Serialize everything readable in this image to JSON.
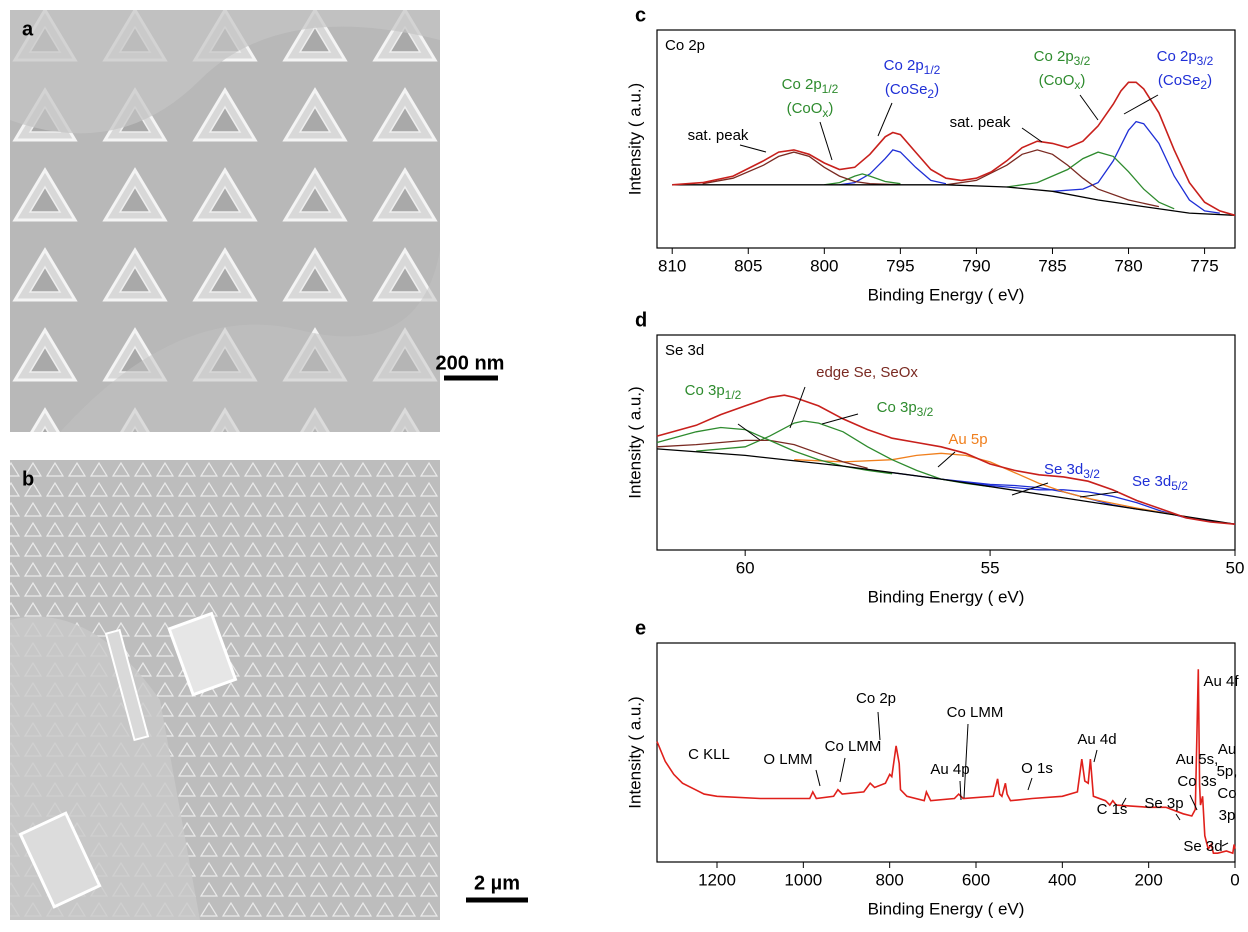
{
  "images": [
    {
      "label": "a",
      "scale_bar": "200 nm"
    },
    {
      "label": "b",
      "scale_bar": "2 µm"
    }
  ],
  "chart_data": [
    {
      "type": "line",
      "label": "c",
      "title": "Co 2p",
      "x_label": "Binding Energy (  eV)",
      "y_label": "Intensity (  a.u.)",
      "xlim": [
        811,
        773
      ],
      "xticks": [
        810,
        805,
        800,
        795,
        790,
        785,
        780,
        775
      ],
      "ylim": [
        0,
        100
      ],
      "series": [
        {
          "color": "#c8201c",
          "x": [
            810,
            808,
            806,
            804,
            803,
            802,
            801,
            800,
            799,
            798,
            797,
            796,
            795.5,
            795,
            794,
            793,
            792,
            791,
            790,
            789,
            788,
            787,
            786,
            785,
            784,
            783,
            782,
            781,
            780.5,
            780,
            779.5,
            779,
            778,
            777,
            776,
            775,
            774,
            773
          ],
          "values": [
            29,
            30,
            33,
            40,
            44,
            45,
            43,
            39,
            36,
            37,
            43,
            51,
            53,
            52,
            44,
            36,
            32,
            31,
            32,
            35,
            40,
            46,
            49,
            48,
            46,
            49,
            56,
            66,
            72,
            76,
            76,
            73,
            62,
            45,
            30,
            21,
            17,
            15
          ]
        },
        {
          "color": "#000000",
          "x": [
            810,
            800,
            792,
            788,
            785,
            782,
            779,
            776,
            773
          ],
          "values": [
            29,
            29,
            29,
            28,
            26,
            22,
            19,
            16,
            15
          ]
        },
        {
          "color": "#7a2a22",
          "x": [
            808,
            806,
            804,
            803,
            802,
            801,
            800,
            799,
            798,
            797,
            795
          ],
          "values": [
            29.5,
            32,
            38,
            42,
            44,
            42,
            37,
            33,
            30.5,
            29.5,
            29
          ]
        },
        {
          "color": "#2e8b2e",
          "x": [
            800,
            799,
            798,
            797.5,
            797,
            796,
            795
          ],
          "values": [
            29,
            30,
            33,
            34,
            33,
            30.5,
            29.5
          ]
        },
        {
          "color": "#1f2fd6",
          "x": [
            799,
            798,
            797,
            796,
            795.5,
            795,
            794,
            793,
            792
          ],
          "values": [
            29,
            30,
            34,
            41,
            45,
            44,
            37,
            31,
            29.5
          ]
        },
        {
          "color": "#7a2a22",
          "x": [
            792,
            790,
            788,
            787,
            786,
            785,
            784,
            783,
            782,
            780,
            778
          ],
          "values": [
            29,
            31,
            38,
            43,
            45,
            43,
            38,
            32,
            27,
            22,
            19
          ]
        },
        {
          "color": "#2e8b2e",
          "x": [
            788,
            786,
            784,
            783,
            782,
            781,
            780,
            779,
            778,
            777
          ],
          "values": [
            28,
            30,
            36,
            41,
            44,
            42,
            35,
            27,
            21,
            18
          ]
        },
        {
          "color": "#1f2fd6",
          "x": [
            785,
            783,
            782,
            781,
            780,
            779.5,
            779,
            778,
            777,
            776,
            775,
            774
          ],
          "values": [
            26,
            27,
            30,
            40,
            54,
            58,
            57,
            48,
            33,
            22,
            17,
            16
          ]
        }
      ],
      "annotations": [
        {
          "lines": [
            [
              "sat. peak"
            ]
          ],
          "color": "#000000"
        },
        {
          "lines": [
            [
              "Co 2p",
              "1/2"
            ],
            [
              "(CoO",
              "x",
              ")"
            ]
          ],
          "color": "#2e8b2e"
        },
        {
          "lines": [
            [
              "Co 2p",
              "1/2"
            ],
            [
              "(CoSe",
              "2",
              ")"
            ]
          ],
          "color": "#1f2fd6"
        },
        {
          "lines": [
            [
              "sat. peak"
            ]
          ],
          "color": "#000000"
        },
        {
          "lines": [
            [
              "Co 2p",
              "3/2"
            ],
            [
              "(CoO",
              "x",
              ")"
            ]
          ],
          "color": "#2e8b2e"
        },
        {
          "lines": [
            [
              "Co 2p",
              "3/2"
            ],
            [
              "(CoSe",
              "2",
              ")"
            ]
          ],
          "color": "#1f2fd6"
        }
      ]
    },
    {
      "type": "line",
      "label": "d",
      "title": "Se 3d",
      "x_label": "Binding Energy (  eV)",
      "y_label": "Intensity (  a.u.)",
      "xlim": [
        61.8,
        50
      ],
      "xticks": [
        60,
        55,
        50
      ],
      "ylim": [
        0,
        100
      ],
      "series": [
        {
          "color": "#c8201c",
          "x": [
            61.8,
            61,
            60.5,
            60,
            59.5,
            59.2,
            59,
            58.5,
            58,
            57.5,
            57,
            56.5,
            56,
            55.5,
            55,
            54.5,
            54,
            53.5,
            53,
            52.5,
            52,
            51.5,
            51,
            50.5,
            50
          ],
          "values": [
            53,
            58,
            63,
            67,
            71,
            72,
            71,
            67,
            61,
            56,
            52,
            50,
            48,
            45,
            40,
            37,
            35,
            34,
            32,
            28,
            23,
            19,
            15,
            13,
            12
          ]
        },
        {
          "color": "#000000",
          "x": [
            61.8,
            60,
            58,
            56,
            54,
            52,
            50
          ],
          "values": [
            47,
            44,
            39,
            33,
            26,
            19,
            12
          ]
        },
        {
          "color": "#2e8b2e",
          "x": [
            61.8,
            61,
            60.5,
            60,
            59.5,
            59,
            58.5,
            58,
            57.5,
            57
          ],
          "values": [
            50,
            55,
            57,
            56,
            51,
            46,
            42,
            39,
            37,
            35.5
          ]
        },
        {
          "color": "#7a2a22",
          "x": [
            61.8,
            61,
            60.5,
            60,
            59.5,
            59,
            58.5,
            58,
            57.5
          ],
          "values": [
            48,
            49,
            50,
            51,
            51,
            49,
            45,
            41,
            38
          ]
        },
        {
          "color": "#2e8b2e",
          "x": [
            61,
            60,
            59.5,
            59,
            58.8,
            58.5,
            58,
            57.5,
            57,
            56.5,
            56,
            55.5,
            55
          ],
          "values": [
            46,
            48,
            53,
            59,
            60,
            59,
            55,
            48,
            42,
            37,
            33,
            31,
            29.5
          ]
        },
        {
          "color": "#f07f1d",
          "x": [
            59,
            58,
            57,
            56.5,
            56,
            55.5,
            55,
            54.5,
            54,
            53.5,
            53,
            52,
            51
          ],
          "values": [
            42,
            41,
            42,
            44,
            45,
            44,
            41,
            36,
            31,
            27,
            24,
            19.5,
            15.5
          ]
        },
        {
          "color": "#1f2fd6",
          "x": [
            57,
            56,
            55,
            54.5,
            54,
            53.5,
            53,
            52.5,
            52
          ],
          "values": [
            36,
            33,
            30.5,
            30,
            29,
            27,
            24,
            21,
            19
          ]
        },
        {
          "color": "#1f2fd6",
          "x": [
            56,
            55,
            54,
            53.5,
            53,
            52.5,
            52,
            51.5,
            51,
            50
          ],
          "values": [
            33,
            30,
            28,
            28,
            27,
            25,
            22,
            18,
            15,
            12
          ]
        }
      ],
      "annotations": [
        {
          "lines": [
            [
              "Co 3p",
              "1/2"
            ]
          ],
          "color": "#2e8b2e"
        },
        {
          "lines": [
            [
              "edge Se, SeOx"
            ]
          ],
          "color": "#7a2a22"
        },
        {
          "lines": [
            [
              "Co 3p",
              "3/2"
            ]
          ],
          "color": "#2e8b2e"
        },
        {
          "lines": [
            [
              "Au 5p"
            ]
          ],
          "color": "#f07f1d"
        },
        {
          "lines": [
            [
              "Se 3d",
              "3/2"
            ]
          ],
          "color": "#1f2fd6"
        },
        {
          "lines": [
            [
              "Se 3d",
              "5/2"
            ]
          ],
          "color": "#1f2fd6"
        }
      ]
    },
    {
      "type": "line",
      "label": "e",
      "x_label": "Binding Energy (  eV)",
      "y_label": "Intensity (  a.u.)",
      "xlim": [
        1339,
        0
      ],
      "xticks": [
        1200,
        1000,
        800,
        600,
        400,
        200,
        0
      ],
      "ylim": [
        0,
        100
      ],
      "series": [
        {
          "color": "#e0201b",
          "x": [
            1339,
            1320,
            1300,
            1280,
            1250,
            1230,
            1200,
            1100,
            1000,
            985,
            978,
            970,
            930,
            920,
            910,
            860,
            845,
            835,
            810,
            800,
            795,
            785,
            778,
            775,
            760,
            720,
            715,
            705,
            650,
            640,
            630,
            560,
            550,
            545,
            540,
            532,
            528,
            520,
            470,
            400,
            365,
            355,
            348,
            340,
            335,
            328,
            300,
            290,
            283,
            275,
            200,
            160,
            120,
            100,
            92,
            88,
            85,
            82,
            80,
            75,
            70,
            62,
            55,
            50,
            40,
            20,
            5,
            2,
            0
          ],
          "values": [
            55,
            46,
            40,
            36,
            33,
            31,
            30,
            29,
            29,
            29,
            32,
            29,
            30,
            33,
            31,
            32,
            36,
            34,
            36,
            40,
            39,
            53,
            45,
            33,
            30,
            28,
            32,
            28,
            29,
            31,
            29,
            30,
            38,
            31,
            30,
            36,
            31,
            28,
            29,
            30,
            32,
            47,
            37,
            36,
            47,
            30,
            28,
            26,
            28,
            26,
            25,
            25,
            22,
            21,
            24,
            60,
            88,
            35,
            26,
            30,
            12,
            6,
            8,
            4,
            4,
            5,
            4,
            8,
            6
          ]
        }
      ],
      "annotations": [
        {
          "lines": [
            [
              "C KLL"
            ]
          ],
          "color": "#000000"
        },
        {
          "lines": [
            [
              "O LMM"
            ]
          ],
          "color": "#000000"
        },
        {
          "lines": [
            [
              "Co LMM"
            ]
          ],
          "color": "#000000"
        },
        {
          "lines": [
            [
              "Co 2p"
            ]
          ],
          "color": "#000000"
        },
        {
          "lines": [
            [
              "Co LMM"
            ]
          ],
          "color": "#000000"
        },
        {
          "lines": [
            [
              "Au 4p"
            ]
          ],
          "color": "#000000"
        },
        {
          "lines": [
            [
              "O 1s"
            ]
          ],
          "color": "#000000"
        },
        {
          "lines": [
            [
              "Au 4d"
            ]
          ],
          "color": "#000000"
        },
        {
          "lines": [
            [
              "C 1s"
            ]
          ],
          "color": "#000000"
        },
        {
          "lines": [
            [
              "Se 3p"
            ]
          ],
          "color": "#000000"
        },
        {
          "lines": [
            [
              "Au 5s,"
            ],
            [
              "Co 3s"
            ]
          ],
          "color": "#000000"
        },
        {
          "lines": [
            [
              "Au 4f"
            ]
          ],
          "color": "#000000"
        },
        {
          "lines": [
            [
              "Au"
            ],
            [
              "5p,"
            ],
            [
              "Co"
            ],
            [
              "3p"
            ]
          ],
          "color": "#000000"
        },
        {
          "lines": [
            [
              "Se 3d"
            ]
          ],
          "color": "#000000"
        }
      ]
    }
  ]
}
